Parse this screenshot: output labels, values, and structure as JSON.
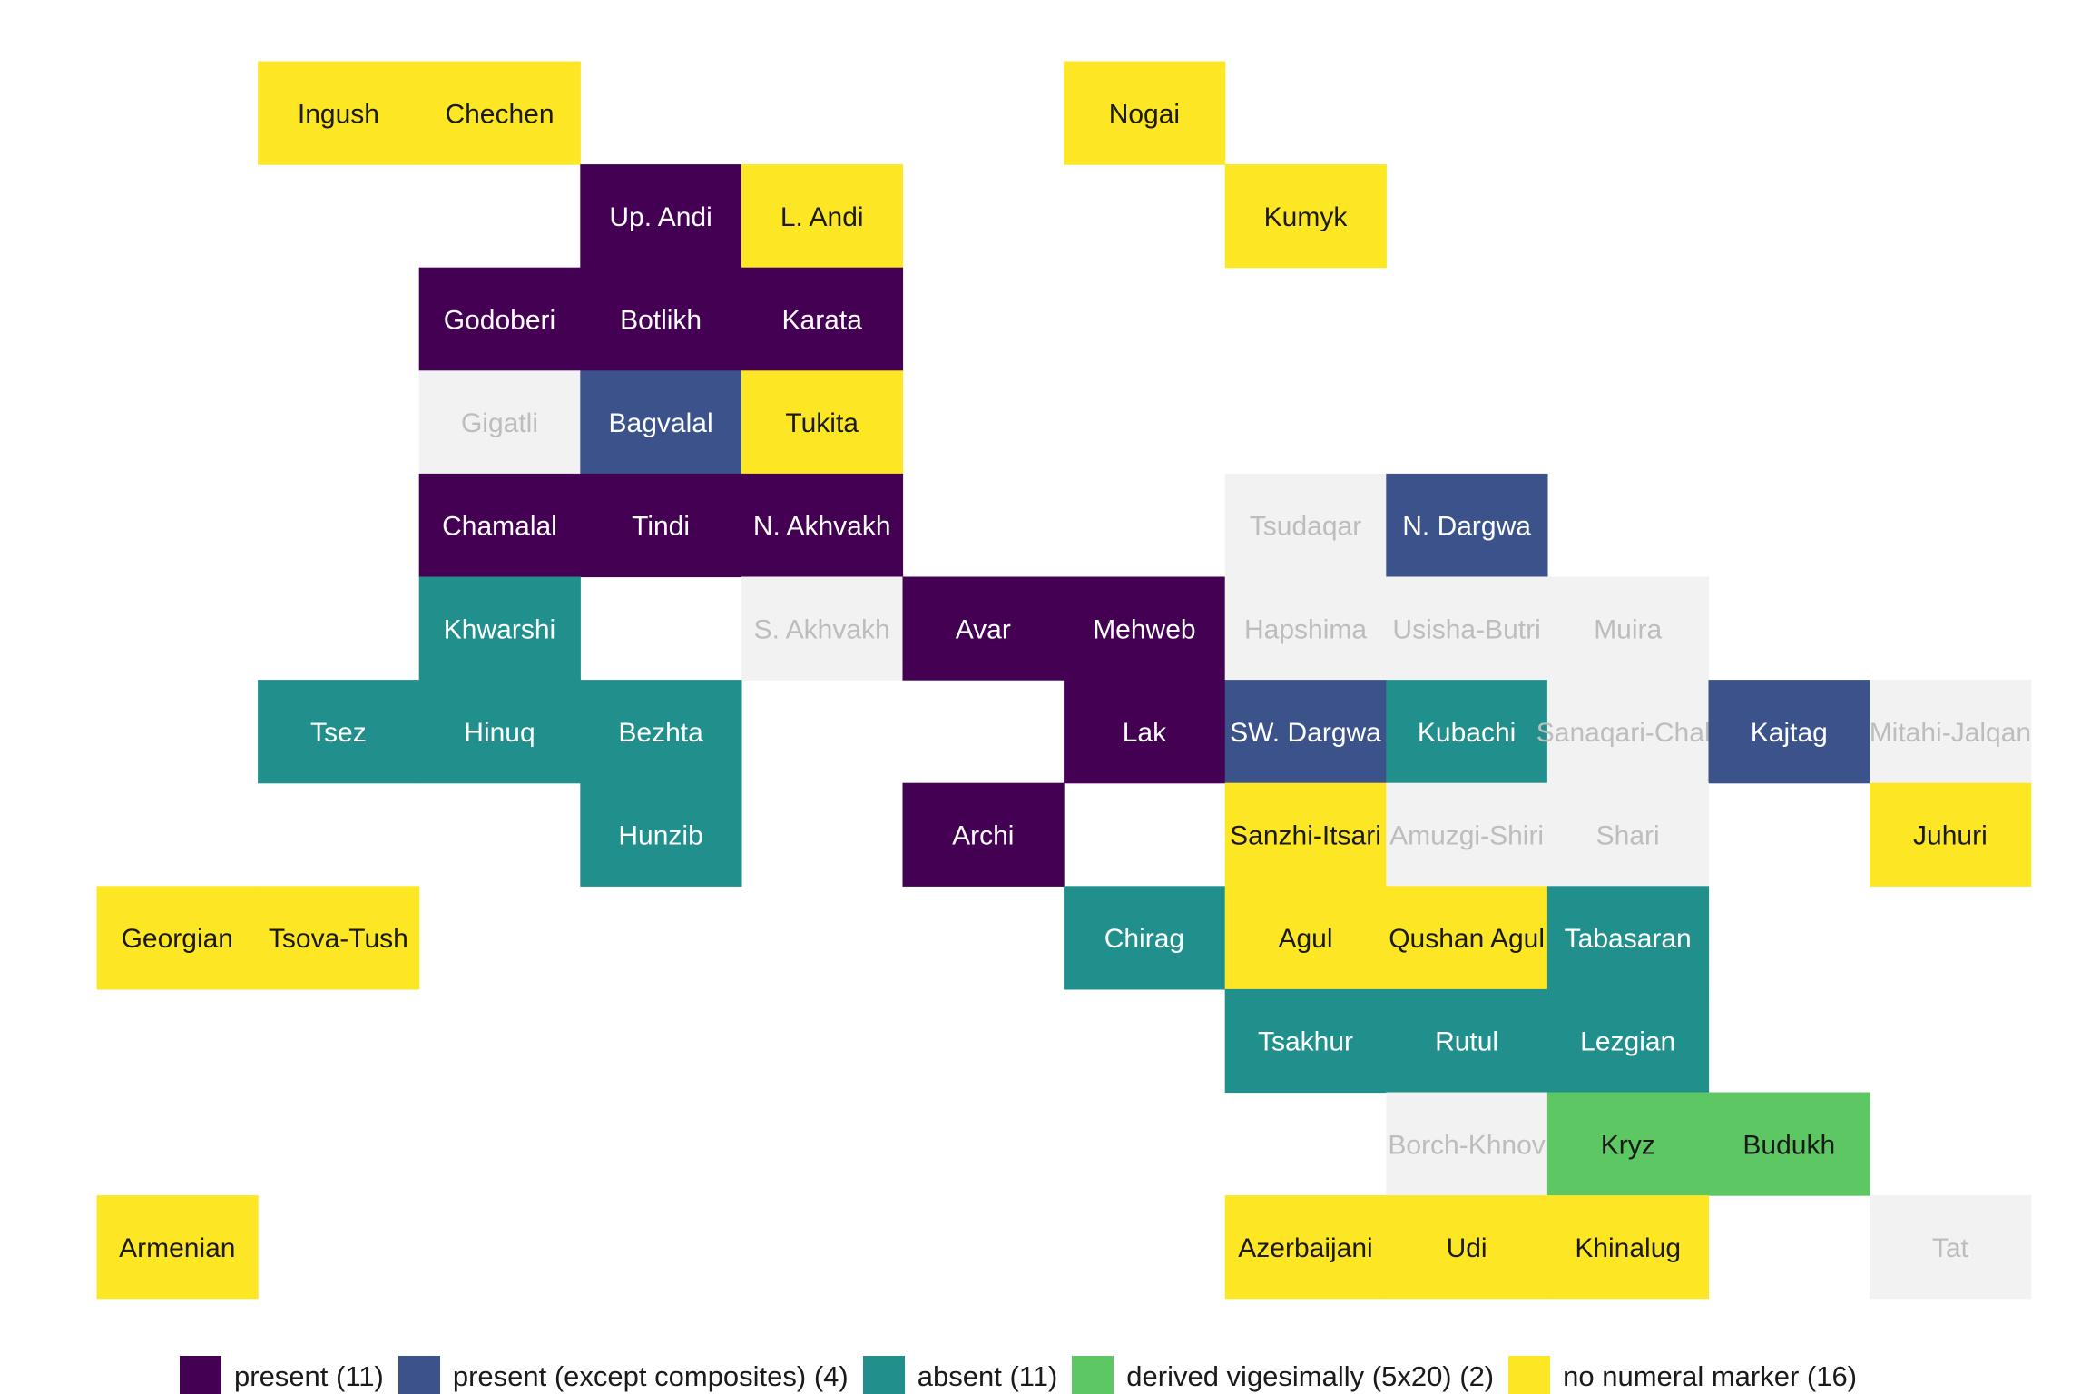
{
  "chart_data": {
    "type": "heatmap",
    "title": "",
    "xlabel": "",
    "ylabel": "",
    "categories": [
      {
        "key": "present",
        "label": "present (11)",
        "color": "#440154"
      },
      {
        "key": "present_except_composites",
        "label": "present (except composites) (4)",
        "color": "#3B528B"
      },
      {
        "key": "absent",
        "label": "absent (11)",
        "color": "#21908C"
      },
      {
        "key": "derived_vigesimally",
        "label": "derived vigesimally (5x20) (2)",
        "color": "#5DC863"
      },
      {
        "key": "no_numeral_marker",
        "label": "no numeral marker (16)",
        "color": "#FDE725"
      },
      {
        "key": "no_data",
        "label": "",
        "color": "#F2F2F2"
      }
    ],
    "legend_position": "bottom",
    "grid": false,
    "cells": [
      {
        "name": "Ingush",
        "row": 1,
        "col": 2,
        "category": "no_numeral_marker"
      },
      {
        "name": "Chechen",
        "row": 1,
        "col": 3,
        "category": "no_numeral_marker"
      },
      {
        "name": "Nogai",
        "row": 1,
        "col": 7,
        "category": "no_numeral_marker"
      },
      {
        "name": "Up. Andi",
        "row": 2,
        "col": 4,
        "category": "present"
      },
      {
        "name": "L. Andi",
        "row": 2,
        "col": 5,
        "category": "no_numeral_marker"
      },
      {
        "name": "Kumyk",
        "row": 2,
        "col": 8,
        "category": "no_numeral_marker"
      },
      {
        "name": "Godoberi",
        "row": 3,
        "col": 3,
        "category": "present"
      },
      {
        "name": "Botlikh",
        "row": 3,
        "col": 4,
        "category": "present"
      },
      {
        "name": "Karata",
        "row": 3,
        "col": 5,
        "category": "present"
      },
      {
        "name": "Gigatli",
        "row": 4,
        "col": 3,
        "category": "no_data"
      },
      {
        "name": "Bagvalal",
        "row": 4,
        "col": 4,
        "category": "present_except_composites"
      },
      {
        "name": "Tukita",
        "row": 4,
        "col": 5,
        "category": "no_numeral_marker"
      },
      {
        "name": "Chamalal",
        "row": 5,
        "col": 3,
        "category": "present"
      },
      {
        "name": "Tindi",
        "row": 5,
        "col": 4,
        "category": "present"
      },
      {
        "name": "N. Akhvakh",
        "row": 5,
        "col": 5,
        "category": "present"
      },
      {
        "name": "Tsudaqar",
        "row": 5,
        "col": 8,
        "category": "no_data"
      },
      {
        "name": "N. Dargwa",
        "row": 5,
        "col": 9,
        "category": "present_except_composites"
      },
      {
        "name": "Khwarshi",
        "row": 6,
        "col": 3,
        "category": "absent"
      },
      {
        "name": "S. Akhvakh",
        "row": 6,
        "col": 5,
        "category": "no_data"
      },
      {
        "name": "Avar",
        "row": 6,
        "col": 6,
        "category": "present"
      },
      {
        "name": "Mehweb",
        "row": 6,
        "col": 7,
        "category": "present"
      },
      {
        "name": "Hapshima",
        "row": 6,
        "col": 8,
        "category": "no_data"
      },
      {
        "name": "Usisha-Butri",
        "row": 6,
        "col": 9,
        "category": "no_data"
      },
      {
        "name": "Muira",
        "row": 6,
        "col": 10,
        "category": "no_data"
      },
      {
        "name": "Tsez",
        "row": 7,
        "col": 2,
        "category": "absent"
      },
      {
        "name": "Hinuq",
        "row": 7,
        "col": 3,
        "category": "absent"
      },
      {
        "name": "Bezhta",
        "row": 7,
        "col": 4,
        "category": "absent"
      },
      {
        "name": "Lak",
        "row": 7,
        "col": 7,
        "category": "present"
      },
      {
        "name": "SW. Dargwa",
        "row": 7,
        "col": 8,
        "category": "present_except_composites"
      },
      {
        "name": "Kubachi",
        "row": 7,
        "col": 9,
        "category": "absent"
      },
      {
        "name": "Sanaqari-Chah",
        "row": 7,
        "col": 10,
        "category": "no_data"
      },
      {
        "name": "Kajtag",
        "row": 7,
        "col": 11,
        "category": "present_except_composites"
      },
      {
        "name": "Mitahi-Jalqan",
        "row": 7,
        "col": 12,
        "category": "no_data"
      },
      {
        "name": "Hunzib",
        "row": 8,
        "col": 4,
        "category": "absent"
      },
      {
        "name": "Archi",
        "row": 8,
        "col": 6,
        "category": "present"
      },
      {
        "name": "Sanzhi-Itsari",
        "row": 8,
        "col": 8,
        "category": "no_numeral_marker"
      },
      {
        "name": "Amuzgi-Shiri",
        "row": 8,
        "col": 9,
        "category": "no_data"
      },
      {
        "name": "Shari",
        "row": 8,
        "col": 10,
        "category": "no_data"
      },
      {
        "name": "Juhuri",
        "row": 8,
        "col": 12,
        "category": "no_numeral_marker"
      },
      {
        "name": "Georgian",
        "row": 9,
        "col": 1,
        "category": "no_numeral_marker"
      },
      {
        "name": "Tsova-Tush",
        "row": 9,
        "col": 2,
        "category": "no_numeral_marker"
      },
      {
        "name": "Chirag",
        "row": 9,
        "col": 7,
        "category": "absent"
      },
      {
        "name": "Agul",
        "row": 9,
        "col": 8,
        "category": "no_numeral_marker"
      },
      {
        "name": "Qushan Agul",
        "row": 9,
        "col": 9,
        "category": "no_numeral_marker"
      },
      {
        "name": "Tabasaran",
        "row": 9,
        "col": 10,
        "category": "absent"
      },
      {
        "name": "Tsakhur",
        "row": 10,
        "col": 8,
        "category": "absent"
      },
      {
        "name": "Rutul",
        "row": 10,
        "col": 9,
        "category": "absent"
      },
      {
        "name": "Lezgian",
        "row": 10,
        "col": 10,
        "category": "absent"
      },
      {
        "name": "Borch-Khnov",
        "row": 11,
        "col": 9,
        "category": "no_data"
      },
      {
        "name": "Kryz",
        "row": 11,
        "col": 10,
        "category": "derived_vigesimally"
      },
      {
        "name": "Budukh",
        "row": 11,
        "col": 11,
        "category": "derived_vigesimally"
      },
      {
        "name": "Armenian",
        "row": 12,
        "col": 1,
        "category": "no_numeral_marker"
      },
      {
        "name": "Azerbaijani",
        "row": 12,
        "col": 8,
        "category": "no_numeral_marker"
      },
      {
        "name": "Udi",
        "row": 12,
        "col": 9,
        "category": "no_numeral_marker"
      },
      {
        "name": "Khinalug",
        "row": 12,
        "col": 10,
        "category": "no_numeral_marker"
      },
      {
        "name": "Tat",
        "row": 12,
        "col": 12,
        "category": "no_data"
      }
    ]
  }
}
